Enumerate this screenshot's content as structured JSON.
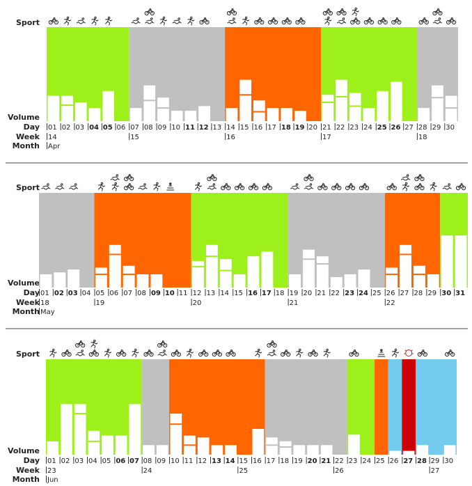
{
  "row_labels": {
    "sport": "Sport",
    "volume": "Volume",
    "day": "Day",
    "week": "Week",
    "month": "Month"
  },
  "colors": {
    "build": "#9ef01a",
    "rest": "#c0c0c0",
    "peak": "#ff6600",
    "recovery": "#73cbee",
    "race": "#cc0000",
    "bar": "#ffffff",
    "divider": "#444444"
  },
  "icon_legend": {
    "bike": "bike-icon",
    "run": "run-icon",
    "swim": "swim-icon",
    "strength": "strength-icon",
    "race": "race-wreath-icon"
  },
  "chart_data": [
    {
      "type": "bar",
      "month": "Apr",
      "days": [
        "01",
        "02",
        "03",
        "04",
        "05",
        "06",
        "07",
        "08",
        "09",
        "10",
        "11",
        "12",
        "13",
        "14",
        "15",
        "16",
        "17",
        "18",
        "19",
        "20",
        "21",
        "22",
        "23",
        "24",
        "25",
        "26",
        "27",
        "28",
        "29",
        "30"
      ],
      "bold_days": [
        "04",
        "05",
        "11",
        "12",
        "18",
        "19",
        "25",
        "26"
      ],
      "weeks": [
        {
          "label": "14",
          "start": 0
        },
        {
          "label": "15",
          "start": 6
        },
        {
          "label": "16",
          "start": 13
        },
        {
          "label": "17",
          "start": 20
        },
        {
          "label": "18",
          "start": 27
        }
      ],
      "phases": [
        {
          "type": "build",
          "start": 0,
          "end": 6
        },
        {
          "type": "rest",
          "start": 6,
          "end": 13
        },
        {
          "type": "peak",
          "start": 13,
          "end": 20
        },
        {
          "type": "build",
          "start": 20,
          "end": 27
        },
        {
          "type": "rest",
          "start": 27,
          "end": 30
        }
      ],
      "volume": [
        [
          0.27
        ],
        [
          0.27,
          0.17
        ],
        [
          0.2
        ],
        [
          0.14
        ],
        [
          0.32
        ],
        [
          0
        ],
        [
          0.14
        ],
        [
          0.38,
          0.22
        ],
        [
          0.25,
          0.14
        ],
        [
          0.11
        ],
        [
          0.11
        ],
        [
          0.16
        ],
        [
          0
        ],
        [
          0.14
        ],
        [
          0.44,
          0.28
        ],
        [
          0.22,
          0.1
        ],
        [
          0.14
        ],
        [
          0.14
        ],
        [
          0.11
        ],
        [
          0
        ],
        [
          0.28,
          0.2
        ],
        [
          0.44,
          0.26
        ],
        [
          0.3,
          0.16
        ],
        [
          0.14
        ],
        [
          0.32
        ],
        [
          0.42
        ],
        [
          0
        ],
        [
          0.14
        ],
        [
          0.38,
          0.25
        ],
        [
          0.27,
          0.14
        ]
      ],
      "sports": [
        [
          "bike"
        ],
        [
          "run"
        ],
        [
          "swim"
        ],
        [
          "run"
        ],
        [
          "run"
        ],
        [],
        [
          "swim"
        ],
        [
          "swim",
          "bike"
        ],
        [
          "run"
        ],
        [
          "swim"
        ],
        [
          "run"
        ],
        [
          "bike"
        ],
        [],
        [
          "swim",
          "bike"
        ],
        [
          "run"
        ],
        [
          "bike"
        ],
        [
          "bike"
        ],
        [
          "bike"
        ],
        [
          "bike"
        ],
        [],
        [
          "run",
          "bike"
        ],
        [
          "swim",
          "bike"
        ],
        [
          "bike",
          "run"
        ],
        [
          "bike"
        ],
        [
          "bike"
        ],
        [
          "bike"
        ],
        [],
        [
          "bike"
        ],
        [
          "swim",
          "bike"
        ],
        [
          "bike"
        ]
      ]
    },
    {
      "type": "bar",
      "month": "May",
      "days": [
        "01",
        "02",
        "03",
        "04",
        "05",
        "06",
        "07",
        "08",
        "09",
        "10",
        "11",
        "12",
        "13",
        "14",
        "15",
        "16",
        "17",
        "18",
        "19",
        "20",
        "21",
        "22",
        "23",
        "24",
        "25",
        "26",
        "27",
        "28",
        "29",
        "30",
        "31"
      ],
      "bold_days": [
        "02",
        "03",
        "09",
        "10",
        "16",
        "17",
        "23",
        "24",
        "30",
        "31"
      ],
      "weeks": [
        {
          "label": "18",
          "start": 0
        },
        {
          "label": "19",
          "start": 4
        },
        {
          "label": "20",
          "start": 11
        },
        {
          "label": "21",
          "start": 18
        },
        {
          "label": "22",
          "start": 25
        }
      ],
      "phases": [
        {
          "type": "rest",
          "start": 0,
          "end": 4
        },
        {
          "type": "peak",
          "start": 4,
          "end": 11
        },
        {
          "type": "build",
          "start": 11,
          "end": 18
        },
        {
          "type": "rest",
          "start": 18,
          "end": 25
        },
        {
          "type": "peak",
          "start": 25,
          "end": 29
        },
        {
          "type": "build",
          "start": 29,
          "end": 31
        }
      ],
      "volume": [
        [
          0.14
        ],
        [
          0.16
        ],
        [
          0.19
        ],
        [
          0
        ],
        [
          0.21,
          0.14
        ],
        [
          0.45,
          0.35
        ],
        [
          0.23,
          0.14
        ],
        [
          0.14
        ],
        [
          0.14
        ],
        [
          0
        ],
        [
          0
        ],
        [
          0.28,
          0.22
        ],
        [
          0.45,
          0.33
        ],
        [
          0.3,
          0.18
        ],
        [
          0.14
        ],
        [
          0.33
        ],
        [
          0.38
        ],
        [
          0
        ],
        [
          0.14
        ],
        [
          0.4,
          0.3
        ],
        [
          0.33,
          0.25
        ],
        [
          0.11
        ],
        [
          0.14
        ],
        [
          0.19
        ],
        [
          0
        ],
        [
          0.21,
          0.14
        ],
        [
          0.45,
          0.35
        ],
        [
          0.23,
          0.14
        ],
        [
          0.14
        ],
        [
          0.55
        ],
        [
          0.55
        ]
      ],
      "sports": [
        [
          "swim"
        ],
        [
          "swim"
        ],
        [
          "swim"
        ],
        [],
        [
          "run"
        ],
        [
          "run",
          "swim"
        ],
        [
          "bike",
          "bike"
        ],
        [
          "swim"
        ],
        [
          "run"
        ],
        [
          "strength"
        ],
        [],
        [
          "run"
        ],
        [
          "swim",
          "bike"
        ],
        [
          "bike"
        ],
        [
          "bike"
        ],
        [
          "bike"
        ],
        [
          "bike"
        ],
        [],
        [
          "swim"
        ],
        [
          "swim",
          "bike"
        ],
        [
          "bike"
        ],
        [
          "bike"
        ],
        [
          "bike"
        ],
        [
          "bike"
        ],
        [],
        [
          "bike"
        ],
        [
          "run",
          "swim"
        ],
        [
          "bike",
          "bike"
        ],
        [
          "run"
        ],
        [
          "swim"
        ],
        [
          "bike"
        ]
      ]
    },
    {
      "type": "bar",
      "month": "Jun",
      "days": [
        "01",
        "02",
        "03",
        "04",
        "05",
        "06",
        "07",
        "08",
        "09",
        "10",
        "11",
        "12",
        "13",
        "14",
        "15",
        "16",
        "17",
        "18",
        "19",
        "20",
        "21",
        "22",
        "23",
        "24",
        "25",
        "26",
        "27",
        "28",
        "29",
        "30"
      ],
      "bold_days": [
        "06",
        "07",
        "13",
        "14",
        "20",
        "21",
        "27",
        "28"
      ],
      "weeks": [
        {
          "label": "23",
          "start": 0
        },
        {
          "label": "24",
          "start": 7
        },
        {
          "label": "25",
          "start": 14
        },
        {
          "label": "26",
          "start": 21
        },
        {
          "label": "27",
          "start": 28
        }
      ],
      "phases": [
        {
          "type": "build",
          "start": 0,
          "end": 7
        },
        {
          "type": "rest",
          "start": 7,
          "end": 9
        },
        {
          "type": "peak",
          "start": 9,
          "end": 16
        },
        {
          "type": "rest",
          "start": 16,
          "end": 22
        },
        {
          "type": "build",
          "start": 22,
          "end": 24
        },
        {
          "type": "peak",
          "start": 24,
          "end": 25
        },
        {
          "type": "recovery",
          "start": 25,
          "end": 26
        },
        {
          "type": "race",
          "start": 26,
          "end": 27
        },
        {
          "type": "recovery",
          "start": 27,
          "end": 30
        }
      ],
      "volume": [
        [
          0.14
        ],
        [
          0.53
        ],
        [
          0.53,
          0.43
        ],
        [
          0.25,
          0.14
        ],
        [
          0.2
        ],
        [
          0.2
        ],
        [
          0.53
        ],
        [
          0.1
        ],
        [
          0.1
        ],
        [
          0.43,
          0.32
        ],
        [
          0.2,
          0.1
        ],
        [
          0.18
        ],
        [
          0.1
        ],
        [
          0.1
        ],
        [
          0
        ],
        [
          0.27
        ],
        [
          0.18,
          0.1
        ],
        [
          0.14,
          0.08
        ],
        [
          0.1
        ],
        [
          0.1
        ],
        [
          0.1
        ],
        [
          0
        ],
        [
          0.21
        ],
        [
          0
        ],
        [
          0
        ],
        [
          0.04
        ],
        [
          0.04
        ],
        [
          0.1
        ],
        [
          0
        ],
        [
          0.1
        ]
      ],
      "sports": [
        [
          "run"
        ],
        [
          "bike"
        ],
        [
          "swim",
          "bike"
        ],
        [
          "bike",
          "run"
        ],
        [
          "run"
        ],
        [
          "bike"
        ],
        [
          "run"
        ],
        [
          "bike"
        ],
        [
          "swim",
          "bike"
        ],
        [
          "bike"
        ],
        [
          "run"
        ],
        [
          "bike"
        ],
        [
          "bike"
        ],
        [
          "bike"
        ],
        [],
        [
          "run"
        ],
        [
          "swim",
          "bike"
        ],
        [
          "bike"
        ],
        [
          "run"
        ],
        [
          "bike"
        ],
        [
          "run"
        ],
        [],
        [
          "bike"
        ],
        [],
        [
          "strength"
        ],
        [
          "run"
        ],
        [
          "race"
        ],
        [
          "bike"
        ],
        [],
        [
          "bike"
        ]
      ]
    }
  ]
}
